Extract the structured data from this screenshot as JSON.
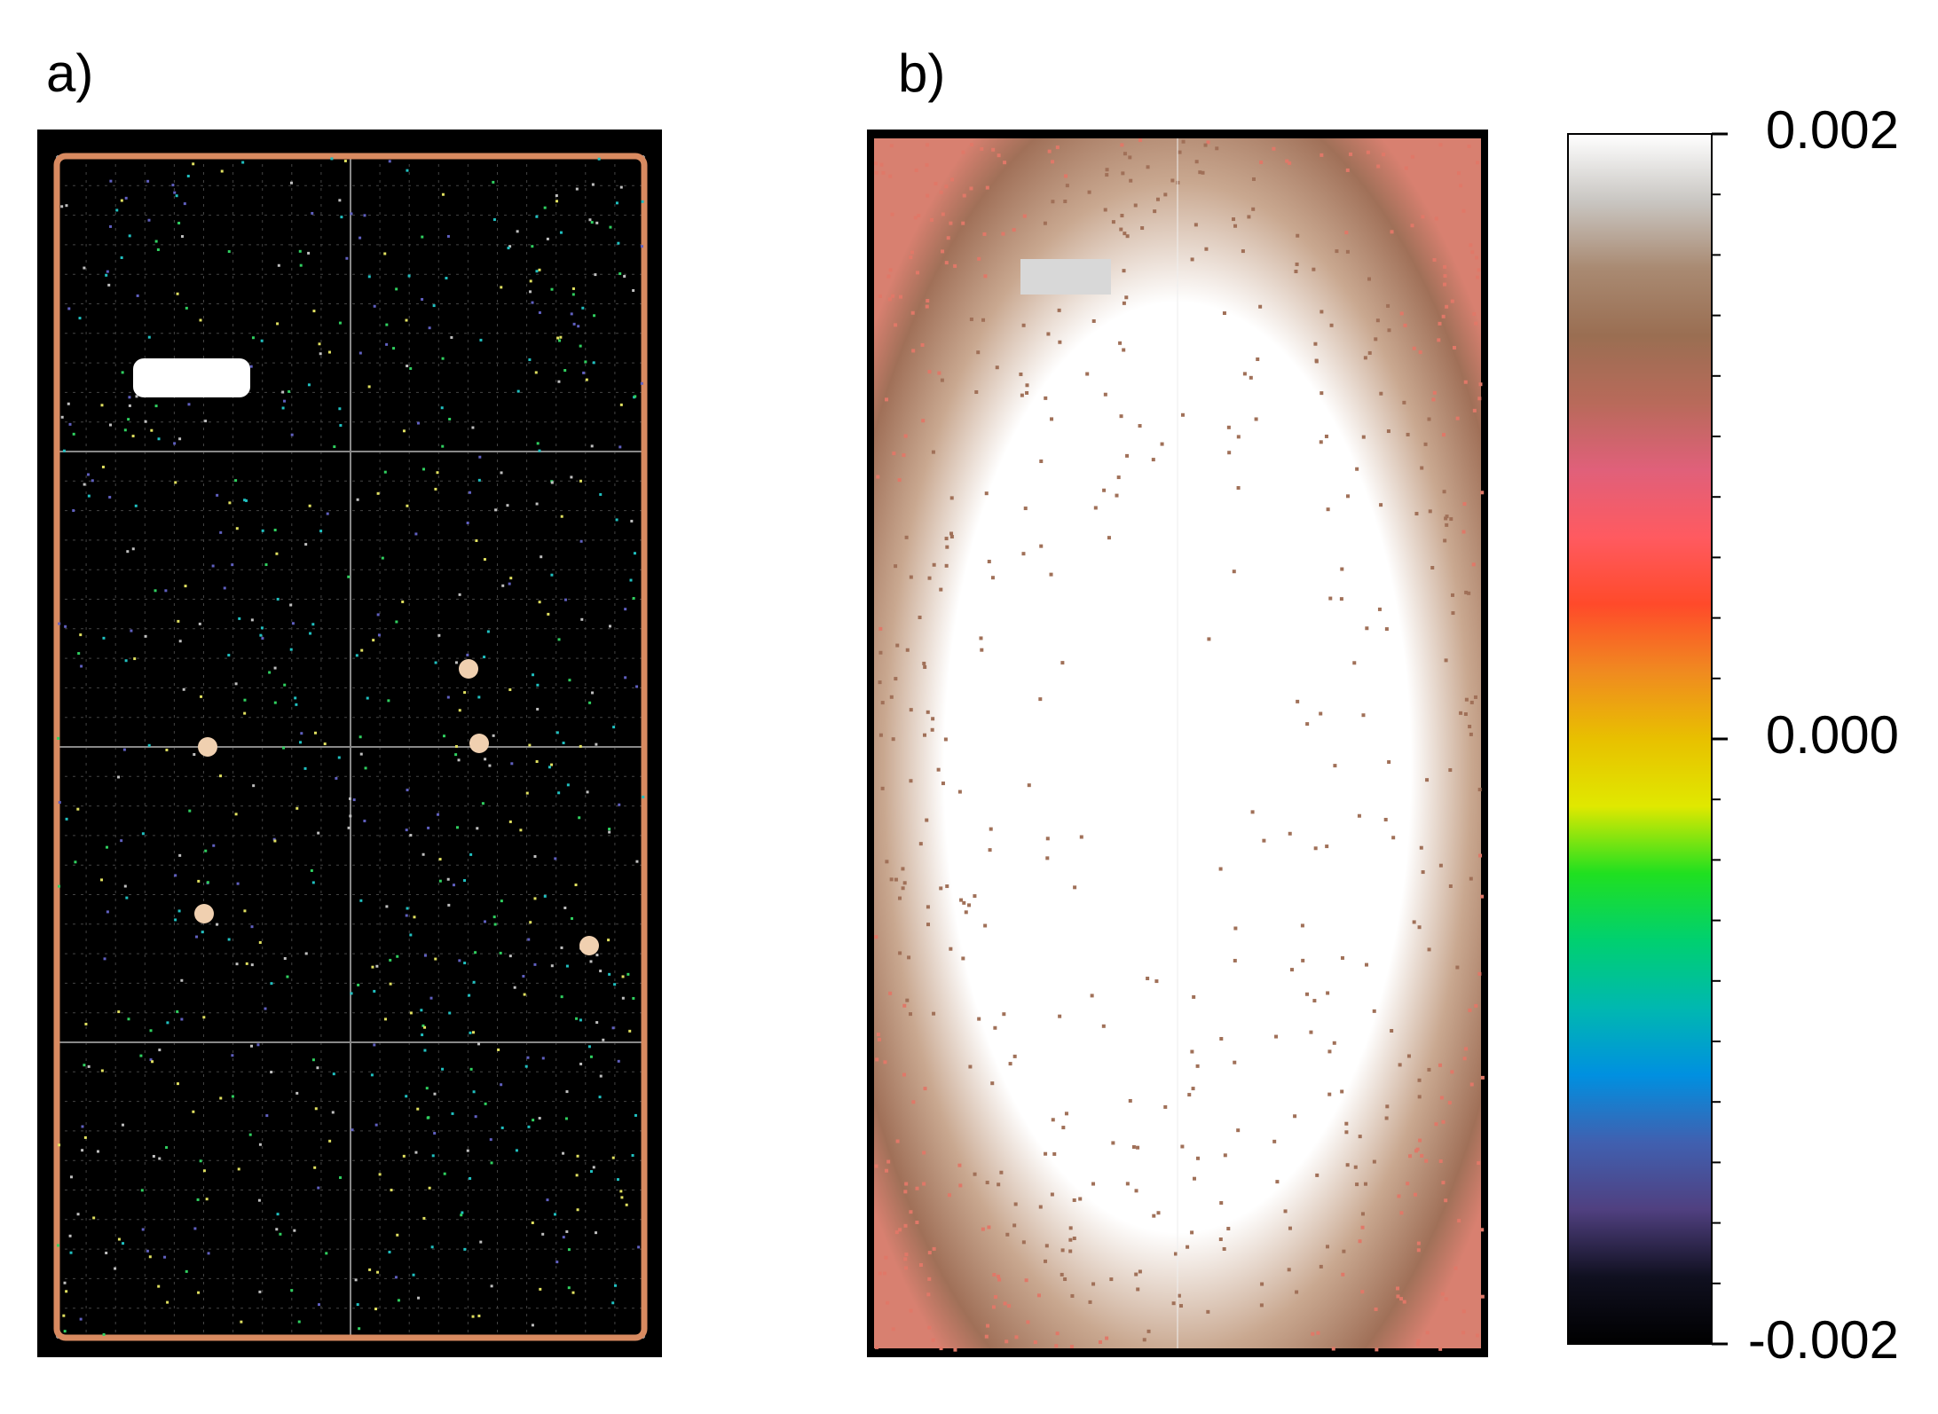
{
  "panels": [
    {
      "label": "a)"
    },
    {
      "label": "b)"
    }
  ],
  "colorbar": {
    "lim": [
      -0.002,
      0.002
    ],
    "ticks": [
      0.002,
      {
        "value": 0,
        "label": "0.000"
      },
      -0.002
    ],
    "colors": [
      "#ffffff",
      "#c9c6c2",
      "#a98a72",
      "#9a6e52",
      "#b86a5a",
      "#e0607a",
      "#ff5a60",
      "#ff4a2a",
      "#f08a20",
      "#e8c000",
      "#e0e800",
      "#20e020",
      "#00d070",
      "#00b8b0",
      "#0090e0",
      "#4060b0",
      "#504080",
      "#101020",
      "#000000"
    ]
  }
}
